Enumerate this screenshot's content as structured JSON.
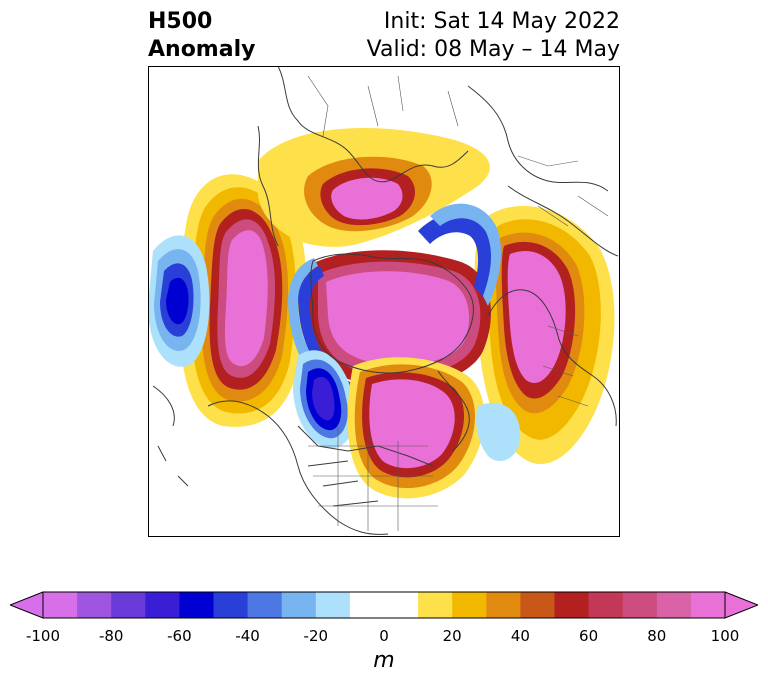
{
  "header": {
    "title_line1": "H500",
    "title_line2": "Anomaly",
    "init": "Init: Sat 14 May 2022",
    "valid": "Valid: 08 May – 14 May"
  },
  "colorbar": {
    "units": "m",
    "ticks": [
      "-100",
      "-80",
      "-60",
      "-40",
      "-20",
      "0",
      "20",
      "40",
      "60",
      "80",
      "100"
    ],
    "colors": [
      "#d66fe8",
      "#9e55e0",
      "#6a3ad9",
      "#3a1ed6",
      "#0000d2",
      "#2a3ed8",
      "#4d78e4",
      "#78b4f0",
      "#ace0fb",
      "#ffffff",
      "#ffffff",
      "#fde04a",
      "#f2b800",
      "#e08a10",
      "#c85818",
      "#b22020",
      "#c23856",
      "#cc4c80",
      "#d963a6",
      "#e870d6"
    ]
  },
  "map": {
    "features": [
      "polar-stereographic-projection",
      "coastlines",
      "country-borders",
      "us-state-borders",
      "h500-anomaly-shading"
    ]
  }
}
